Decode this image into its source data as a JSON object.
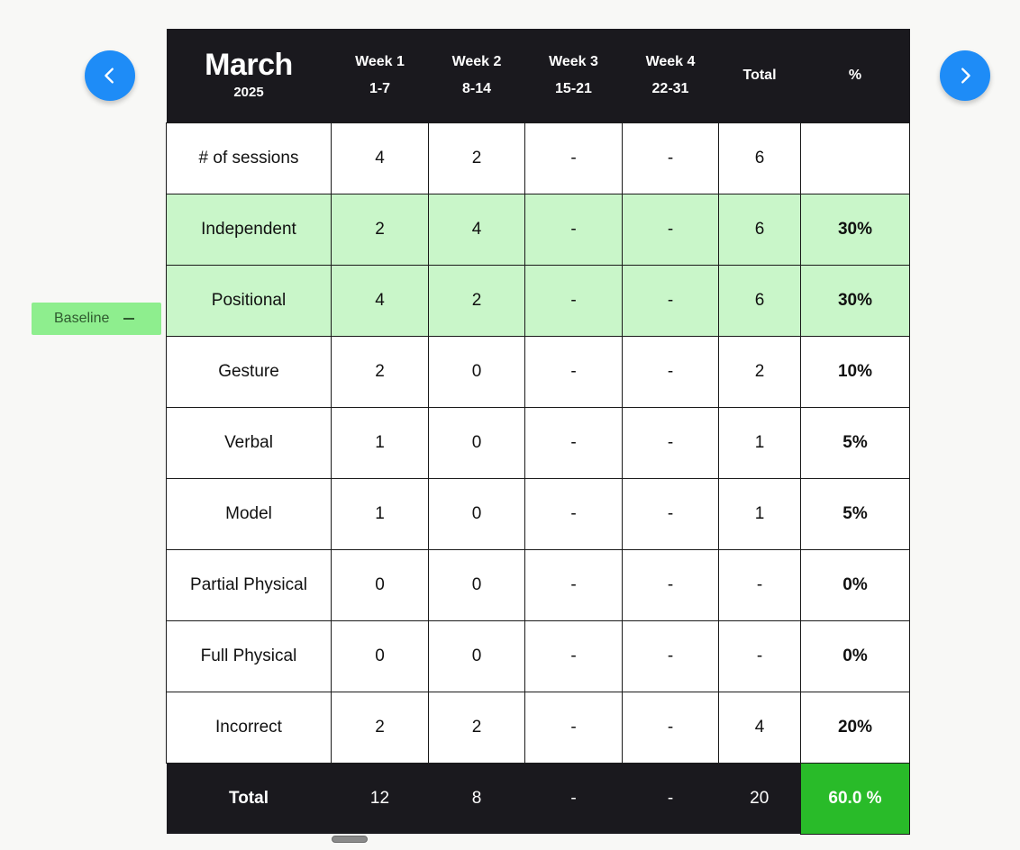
{
  "nav": {
    "prev_icon": "chevron-left-icon",
    "next_icon": "chevron-right-icon",
    "accent_color": "#1e8cf7"
  },
  "baseline": {
    "label": "Baseline",
    "icon": "minus-icon",
    "color": "#8eee8e"
  },
  "header": {
    "month": "March",
    "year": "2025",
    "weeks": [
      {
        "label": "Week 1",
        "range": "1-7"
      },
      {
        "label": "Week 2",
        "range": "8-14"
      },
      {
        "label": "Week 3",
        "range": "15-21"
      },
      {
        "label": "Week 4",
        "range": "22-31"
      }
    ],
    "total_label": "Total",
    "pct_label": "%"
  },
  "rows": [
    {
      "label": "# of sessions",
      "cells": [
        "4",
        "2",
        "-",
        "-"
      ],
      "total": "6",
      "pct": ""
    },
    {
      "label": "Independent",
      "cells": [
        "2",
        "4",
        "-",
        "-"
      ],
      "total": "6",
      "pct": "30%",
      "highlight": true
    },
    {
      "label": "Positional",
      "cells": [
        "4",
        "2",
        "-",
        "-"
      ],
      "total": "6",
      "pct": "30%",
      "highlight": true
    },
    {
      "label": "Gesture",
      "cells": [
        "2",
        "0",
        "-",
        "-"
      ],
      "total": "2",
      "pct": "10%"
    },
    {
      "label": "Verbal",
      "cells": [
        "1",
        "0",
        "-",
        "-"
      ],
      "total": "1",
      "pct": "5%"
    },
    {
      "label": "Model",
      "cells": [
        "1",
        "0",
        "-",
        "-"
      ],
      "total": "1",
      "pct": "5%"
    },
    {
      "label": "Partial Physical",
      "cells": [
        "0",
        "0",
        "-",
        "-"
      ],
      "total": "-",
      "pct": "0%"
    },
    {
      "label": "Full Physical",
      "cells": [
        "0",
        "0",
        "-",
        "-"
      ],
      "total": "-",
      "pct": "0%"
    },
    {
      "label": "Incorrect",
      "cells": [
        "2",
        "2",
        "-",
        "-"
      ],
      "total": "4",
      "pct": "20%"
    }
  ],
  "footer": {
    "label": "Total",
    "cells": [
      "12",
      "8",
      "-",
      "-"
    ],
    "total": "20",
    "pct": "60.0 %",
    "pct_color": "#29bb29"
  },
  "colors": {
    "header_bg": "#1a191e",
    "highlight_row": "#c9f6c9"
  }
}
